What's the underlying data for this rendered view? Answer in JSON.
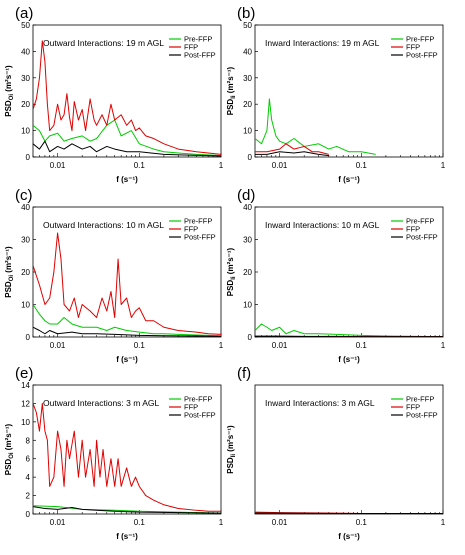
{
  "chart_data": [
    {
      "type": "line",
      "panel": "(a)",
      "annotation": "Outward Interactions: 19 m AGL",
      "ylabel_main": "PSD",
      "ylabel_sub": "Oi",
      "ylabel_unit": " (m²s⁻¹)",
      "xlabel": "f (s⁻¹)",
      "xscale": "log",
      "xlim": [
        0.005,
        1
      ],
      "ylim": [
        0,
        50
      ],
      "yticks": [
        "0",
        "10",
        "20",
        "30",
        "40",
        "50"
      ],
      "xticks": [
        "0.01",
        "0.1",
        "1"
      ],
      "legend": [
        "Pre-FFP",
        "FFP",
        "Post-FFP"
      ],
      "series": [
        {
          "name": "Pre-FFP",
          "color": "#00cc00",
          "x": [
            0.005,
            0.006,
            0.007,
            0.008,
            0.01,
            0.012,
            0.015,
            0.02,
            0.025,
            0.03,
            0.04,
            0.05,
            0.06,
            0.08,
            0.1,
            0.15,
            0.2,
            0.3,
            0.5,
            0.7,
            1
          ],
          "y": [
            12,
            10,
            6,
            8,
            9,
            6,
            7,
            8,
            6,
            7,
            12,
            14,
            8,
            10,
            5,
            3,
            2,
            1.5,
            1,
            0.8,
            0.5
          ]
        },
        {
          "name": "FFP",
          "color": "#e00000",
          "x": [
            0.005,
            0.0055,
            0.006,
            0.0065,
            0.007,
            0.0075,
            0.008,
            0.009,
            0.01,
            0.011,
            0.012,
            0.013,
            0.014,
            0.015,
            0.016,
            0.018,
            0.02,
            0.022,
            0.025,
            0.028,
            0.03,
            0.035,
            0.04,
            0.045,
            0.05,
            0.06,
            0.07,
            0.08,
            0.09,
            0.1,
            0.12,
            0.15,
            0.2,
            0.3,
            0.5,
            0.7,
            1
          ],
          "y": [
            18,
            22,
            30,
            44,
            36,
            20,
            10,
            12,
            20,
            14,
            16,
            24,
            15,
            10,
            21,
            14,
            18,
            10,
            22,
            14,
            12,
            16,
            12,
            20,
            14,
            16,
            12,
            14,
            10,
            11,
            8,
            7,
            5,
            3,
            2,
            1.5,
            1
          ]
        },
        {
          "name": "Post-FFP",
          "color": "#000000",
          "x": [
            0.005,
            0.006,
            0.007,
            0.008,
            0.01,
            0.012,
            0.015,
            0.02,
            0.025,
            0.03,
            0.04,
            0.05,
            0.07,
            0.1,
            0.2,
            0.5,
            1
          ],
          "y": [
            5,
            3,
            6,
            2,
            4,
            3,
            5,
            3,
            4,
            2,
            4,
            3,
            2,
            2,
            1,
            0.6,
            0.4
          ]
        }
      ]
    },
    {
      "type": "line",
      "panel": "(b)",
      "annotation": "Inward Interactions: 19 m AGL",
      "ylabel_main": "PSD",
      "ylabel_sub": "Ii",
      "ylabel_unit": " (m²s⁻¹)",
      "xlabel": "f (s⁻¹)",
      "xscale": "log",
      "xlim": [
        0.005,
        1
      ],
      "ylim": [
        0,
        50
      ],
      "yticks": [
        "0",
        "10",
        "20",
        "30",
        "40",
        "50"
      ],
      "xticks": [
        "0.01",
        "0.1",
        "1"
      ],
      "legend": [
        "Pre-FFP",
        "FFP",
        "Post-FFP"
      ],
      "series": [
        {
          "name": "Pre-FFP",
          "color": "#00cc00",
          "x": [
            0.005,
            0.006,
            0.007,
            0.0075,
            0.008,
            0.009,
            0.01,
            0.012,
            0.015,
            0.02,
            0.03,
            0.04,
            0.05,
            0.07,
            0.1,
            0.15
          ],
          "y": [
            7,
            5,
            10,
            22,
            14,
            8,
            6,
            5,
            7,
            4,
            5,
            3,
            4,
            2,
            2,
            1
          ]
        },
        {
          "name": "FFP",
          "color": "#e00000",
          "x": [
            0.005,
            0.007,
            0.01,
            0.012,
            0.015,
            0.02,
            0.025,
            0.03,
            0.04
          ],
          "y": [
            2,
            2,
            3,
            5,
            3,
            4,
            2,
            2,
            1
          ]
        },
        {
          "name": "Post-FFP",
          "color": "#000000",
          "x": [
            0.005,
            0.007,
            0.01,
            0.015,
            0.02,
            0.03,
            0.04
          ],
          "y": [
            1,
            1,
            2,
            1.5,
            2,
            1,
            0.5
          ]
        }
      ]
    },
    {
      "type": "line",
      "panel": "(c)",
      "annotation": "Outward Interactions: 10 m AGL",
      "ylabel_main": "PSD",
      "ylabel_sub": "Oi",
      "ylabel_unit": " (m²s⁻¹)",
      "xlabel": "f (s⁻¹)",
      "xscale": "log",
      "xlim": [
        0.005,
        1
      ],
      "ylim": [
        0,
        40
      ],
      "yticks": [
        "0",
        "10",
        "20",
        "30",
        "40"
      ],
      "xticks": [
        "0.01",
        "0.1",
        "1"
      ],
      "legend": [
        "Pre-FFP",
        "FFP",
        "Post-FFP"
      ],
      "series": [
        {
          "name": "Pre-FFP",
          "color": "#00cc00",
          "x": [
            0.005,
            0.006,
            0.007,
            0.008,
            0.01,
            0.012,
            0.015,
            0.02,
            0.03,
            0.04,
            0.05,
            0.07,
            0.1,
            0.15,
            0.2,
            0.3,
            0.5,
            0.7,
            1
          ],
          "y": [
            10,
            7,
            5,
            4,
            4,
            6,
            4,
            3,
            3,
            2,
            3,
            2,
            1.5,
            1,
            1,
            0.8,
            0.6,
            0.5,
            0.4
          ]
        },
        {
          "name": "FFP",
          "color": "#e00000",
          "x": [
            0.005,
            0.006,
            0.007,
            0.008,
            0.009,
            0.01,
            0.011,
            0.012,
            0.014,
            0.016,
            0.018,
            0.02,
            0.025,
            0.03,
            0.035,
            0.04,
            0.045,
            0.05,
            0.055,
            0.06,
            0.07,
            0.08,
            0.09,
            0.1,
            0.12,
            0.15,
            0.2,
            0.3,
            0.5,
            0.7,
            1
          ],
          "y": [
            22,
            16,
            10,
            12,
            20,
            32,
            24,
            10,
            8,
            12,
            6,
            10,
            8,
            6,
            12,
            8,
            14,
            6,
            24,
            10,
            12,
            6,
            8,
            9,
            5,
            5,
            3,
            2,
            1.5,
            1,
            0.8
          ]
        },
        {
          "name": "Post-FFP",
          "color": "#000000",
          "x": [
            0.005,
            0.006,
            0.007,
            0.008,
            0.01,
            0.015,
            0.02,
            0.03,
            0.05,
            0.1,
            0.2,
            0.5,
            1
          ],
          "y": [
            3,
            2,
            1,
            2,
            1,
            1.5,
            1,
            1,
            0.8,
            0.5,
            0.4,
            0.3,
            0.2
          ]
        }
      ]
    },
    {
      "type": "line",
      "panel": "(d)",
      "annotation": "Inward Interactions: 10 m AGL",
      "ylabel_main": "PSD",
      "ylabel_sub": "Ii",
      "ylabel_unit": " (m²s⁻¹)",
      "xlabel": "f (s⁻¹)",
      "xscale": "log",
      "xlim": [
        0.005,
        1
      ],
      "ylim": [
        0,
        40
      ],
      "yticks": [
        "0",
        "10",
        "20",
        "30",
        "40"
      ],
      "xticks": [
        "0.01",
        "0.1",
        "1"
      ],
      "legend": [
        "Pre-FFP",
        "FFP",
        "Post-FFP"
      ],
      "series": [
        {
          "name": "Pre-FFP",
          "color": "#00cc00",
          "x": [
            0.005,
            0.006,
            0.007,
            0.008,
            0.01,
            0.012,
            0.015,
            0.02,
            0.03,
            0.05,
            0.1,
            0.2,
            0.5,
            1
          ],
          "y": [
            2,
            4,
            3,
            2,
            3,
            1,
            2,
            1,
            1,
            0.8,
            0.5,
            0.3,
            0.2,
            0.1
          ]
        },
        {
          "name": "FFP",
          "color": "#e00000",
          "x": [
            0.005,
            0.01,
            0.02,
            0.05,
            0.1,
            0.5,
            1
          ],
          "y": [
            0.3,
            0.3,
            0.2,
            0.2,
            0.1,
            0.1,
            0.1
          ]
        },
        {
          "name": "Post-FFP",
          "color": "#000000",
          "x": [
            0.005,
            0.01,
            0.05,
            0.1,
            1
          ],
          "y": [
            0.2,
            0.2,
            0.1,
            0.1,
            0.1
          ]
        }
      ]
    },
    {
      "type": "line",
      "panel": "(e)",
      "annotation": "Outward Interactions: 3 m AGL",
      "ylabel_main": "PSD",
      "ylabel_sub": "Oi",
      "ylabel_unit": " (m²s⁻¹)",
      "xlabel": "f (s⁻¹)",
      "xscale": "log",
      "xlim": [
        0.005,
        1
      ],
      "ylim": [
        0,
        14
      ],
      "yticks": [
        "0",
        "2",
        "4",
        "6",
        "8",
        "10",
        "12",
        "14"
      ],
      "xticks": [
        "0.01",
        "0.1",
        "1"
      ],
      "legend": [
        "Pre-FFP",
        "FFP",
        "Post-FFP"
      ],
      "series": [
        {
          "name": "Pre-FFP",
          "color": "#00cc00",
          "x": [
            0.005,
            0.01,
            0.02,
            0.05,
            0.1,
            1
          ],
          "y": [
            0.9,
            0.8,
            0.5,
            0.4,
            0.3,
            0.1
          ]
        },
        {
          "name": "FFP",
          "color": "#e00000",
          "x": [
            0.005,
            0.0055,
            0.006,
            0.0065,
            0.007,
            0.0075,
            0.008,
            0.009,
            0.01,
            0.011,
            0.012,
            0.013,
            0.014,
            0.016,
            0.018,
            0.02,
            0.022,
            0.025,
            0.028,
            0.03,
            0.033,
            0.036,
            0.04,
            0.045,
            0.05,
            0.055,
            0.06,
            0.07,
            0.08,
            0.09,
            0.1,
            0.12,
            0.15,
            0.2,
            0.3,
            0.5,
            0.7,
            1
          ],
          "y": [
            12,
            11,
            9,
            12,
            9,
            8,
            3,
            4,
            9,
            7,
            3,
            8,
            6,
            9,
            4,
            8,
            4,
            7,
            3,
            8,
            4,
            7,
            3,
            6,
            3,
            6,
            3,
            5,
            3,
            4,
            3,
            2,
            1.5,
            1,
            0.6,
            0.4,
            0.3,
            0.3
          ]
        },
        {
          "name": "Post-FFP",
          "color": "#000000",
          "x": [
            0.005,
            0.007,
            0.01,
            0.015,
            0.02,
            0.03,
            0.05,
            0.1,
            1
          ],
          "y": [
            0.8,
            0.6,
            0.5,
            0.7,
            0.5,
            0.4,
            0.3,
            0.2,
            0.1
          ]
        }
      ]
    },
    {
      "type": "line",
      "panel": "(f)",
      "annotation": "Inward Interactions: 3 m AGL",
      "ylabel_main": "PSD",
      "ylabel_sub": "Ii",
      "ylabel_unit": " (m²s⁻¹)",
      "xlabel": "f (s⁻¹)",
      "xscale": "log",
      "xlim": [
        0.005,
        1
      ],
      "ylim": [
        0,
        14
      ],
      "yticks": [],
      "xticks": [
        "0.01",
        "0.1",
        "1"
      ],
      "legend": [
        "Pre-FFP",
        "FFP",
        "Post-FFP"
      ],
      "series": [
        {
          "name": "Pre-FFP",
          "color": "#00cc00",
          "x": [
            0.005,
            0.01,
            0.05,
            0.1,
            1
          ],
          "y": [
            0.1,
            0.1,
            0.05,
            0.05,
            0.05
          ]
        },
        {
          "name": "FFP",
          "color": "#e00000",
          "x": [
            0.005,
            0.01,
            0.05,
            0.1,
            1
          ],
          "y": [
            0.2,
            0.15,
            0.1,
            0.05,
            0.05
          ]
        },
        {
          "name": "Post-FFP",
          "color": "#000000",
          "x": [
            0.005,
            0.01,
            0.05,
            0.1,
            1
          ],
          "y": [
            0.1,
            0.1,
            0.05,
            0.05,
            0.05
          ]
        }
      ]
    }
  ]
}
